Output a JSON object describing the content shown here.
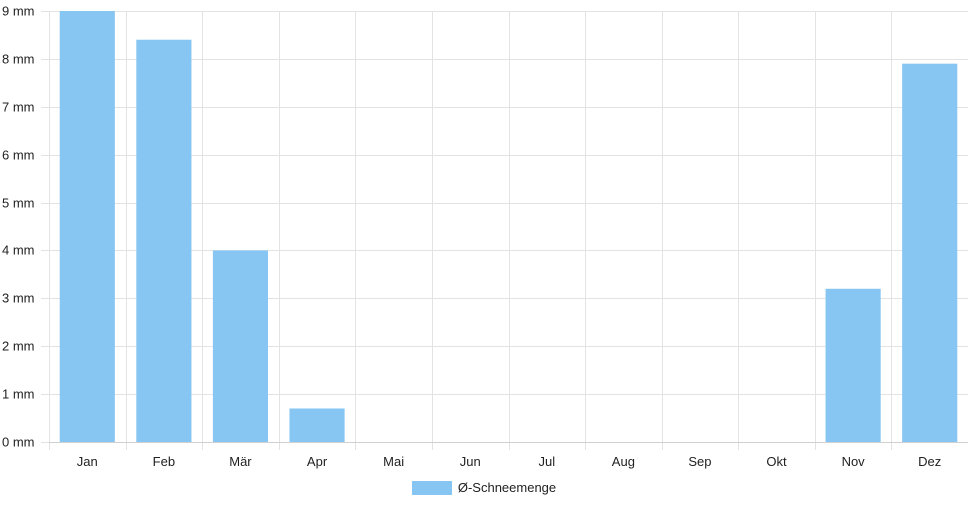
{
  "chart_data": {
    "type": "bar",
    "categories": [
      "Jan",
      "Feb",
      "Mär",
      "Apr",
      "Mai",
      "Jun",
      "Jul",
      "Aug",
      "Sep",
      "Okt",
      "Nov",
      "Dez"
    ],
    "series": [
      {
        "name": "Ø-Schneemenge",
        "values": [
          9.0,
          8.4,
          4.0,
          0.7,
          0,
          0,
          0,
          0,
          0,
          0,
          3.2,
          7.9
        ]
      }
    ],
    "ylim": [
      0,
      9
    ],
    "yticks": [
      0,
      1,
      2,
      3,
      4,
      5,
      6,
      7,
      8,
      9
    ],
    "ytick_labels": [
      "0 mm",
      "1 mm",
      "2 mm",
      "3 mm",
      "4 mm",
      "5 mm",
      "6 mm",
      "7 mm",
      "8 mm",
      "9 mm"
    ],
    "grid": true,
    "legend_position": "bottom",
    "bar_color": "#87c6f2",
    "grid_color": "#e3e3e3"
  }
}
